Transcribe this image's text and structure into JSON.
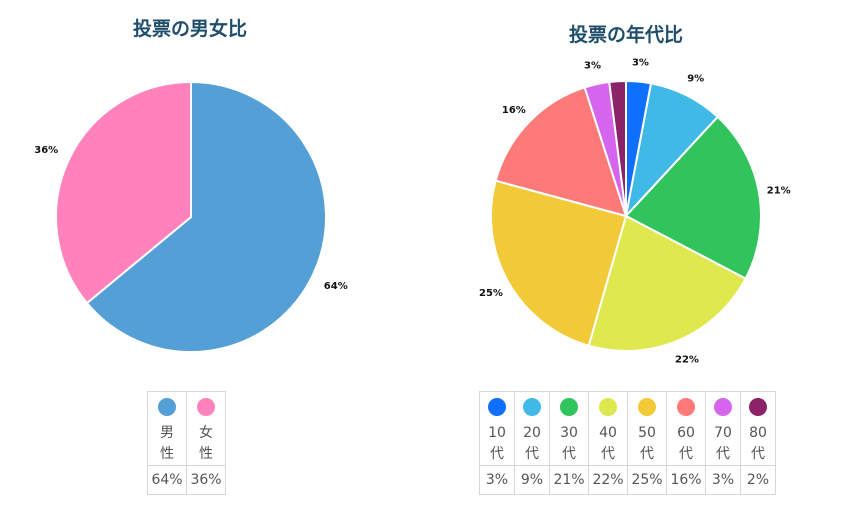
{
  "chart_data": [
    {
      "type": "pie",
      "title": "投票の男女比",
      "categories": [
        "男性",
        "女性"
      ],
      "values": [
        64,
        36
      ],
      "labels": [
        "64%",
        "36%"
      ],
      "colors": [
        "#539fd6",
        "#ff82bd"
      ],
      "legend": "bottom"
    },
    {
      "type": "pie",
      "title": "投票の年代比",
      "categories": [
        "10代",
        "20代",
        "30代",
        "40代",
        "50代",
        "60代",
        "70代",
        "80代"
      ],
      "values": [
        3,
        9,
        21,
        22,
        25,
        16,
        3,
        2
      ],
      "labels": [
        "3%",
        "9%",
        "21%",
        "22%",
        "25%",
        "16%",
        "3%",
        "2%"
      ],
      "slice_labels": [
        "3%",
        "9%",
        "21%",
        "22%",
        "25%",
        "16%",
        "3%",
        ""
      ],
      "colors": [
        "#0f6fff",
        "#40b9e6",
        "#32c45c",
        "#dfe84f",
        "#f2c936",
        "#fd7a78",
        "#d665ed",
        "#8a2367"
      ],
      "legend": "bottom"
    }
  ]
}
